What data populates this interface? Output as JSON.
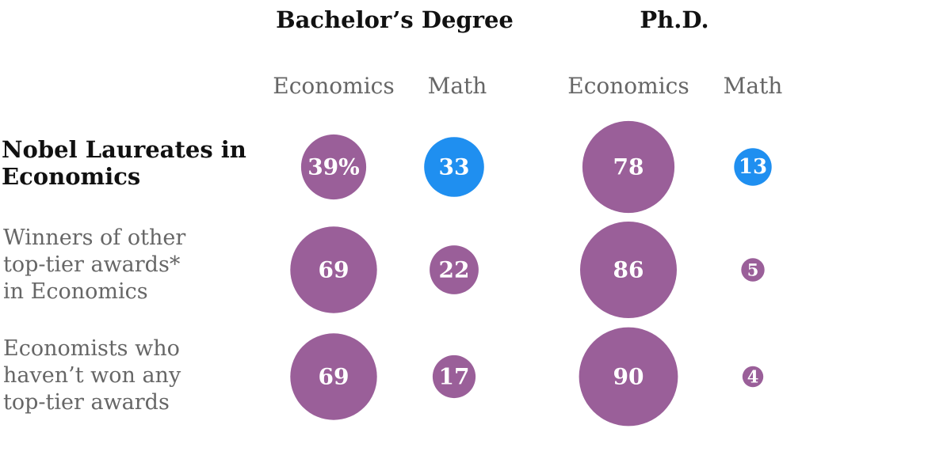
{
  "headers": {
    "groups": [
      "Bachelor’s Degree",
      "Ph.D."
    ],
    "columns": [
      "Economics",
      "Math",
      "Economics",
      "Math"
    ]
  },
  "rows": [
    {
      "lines": [
        "Nobel Laureates in",
        "Economics"
      ],
      "highlight": true
    },
    {
      "lines": [
        "Winners of other",
        "top-tier awards*",
        "in Economics"
      ],
      "highlight": false
    },
    {
      "lines": [
        "Economists who",
        "haven’t won any",
        "top-tier awards"
      ],
      "highlight": false
    }
  ],
  "colors": {
    "economics": "#9a5f99",
    "math_highlight": "#1f8ff0",
    "math_other": "#9a5f99"
  },
  "chart_data": {
    "type": "bubble-table",
    "unit": "%",
    "columns": [
      "Bachelor’s Degree — Economics",
      "Bachelor’s Degree — Math",
      "Ph.D. — Economics",
      "Ph.D. — Math"
    ],
    "rows": [
      "Nobel Laureates in Economics",
      "Winners of other top-tier awards* in Economics",
      "Economists who haven’t won any top-tier awards"
    ],
    "values": [
      [
        39,
        33,
        78,
        13
      ],
      [
        69,
        22,
        86,
        5
      ],
      [
        69,
        17,
        90,
        4
      ]
    ],
    "labels": [
      [
        "39%",
        "33",
        "78",
        "13"
      ],
      [
        "69",
        "22",
        "86",
        "5"
      ],
      [
        "69",
        "17",
        "90",
        "4"
      ]
    ]
  }
}
